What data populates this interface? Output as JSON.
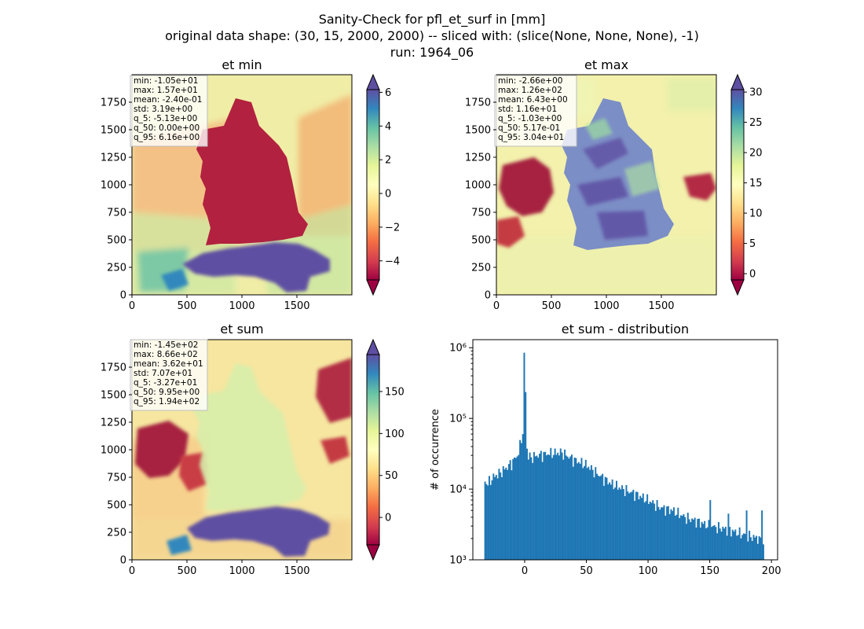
{
  "figure": {
    "title_lines": [
      "Sanity-Check for pfl_et_surf in [mm]",
      "original data shape: (30, 15, 2000, 2000) -- sliced with: (slice(None, None, None), -1)",
      "run: 1964_06"
    ]
  },
  "chart_data": [
    {
      "type": "heatmap",
      "title": "et min",
      "xlim": [
        0,
        2000
      ],
      "ylim": [
        0,
        2000
      ],
      "xticks": [
        0,
        500,
        1000,
        1500
      ],
      "yticks": [
        0,
        250,
        500,
        750,
        1000,
        1250,
        1500,
        1750
      ],
      "colorbar": {
        "cmap": "Spectral",
        "range": [
          -5.13,
          6.16
        ],
        "ticks": [
          -4,
          -2,
          0,
          2,
          4,
          6
        ],
        "extend": "both"
      },
      "stats": [
        "min: -1.05e+01",
        "max: 1.57e+01",
        "mean: -2.40e-01",
        "std: 3.19e+00",
        "q_5: -5.13e+00",
        "q_50: 0.00e+00",
        "q_95: 6.16e+00"
      ]
    },
    {
      "type": "heatmap",
      "title": "et max",
      "xlim": [
        0,
        2000
      ],
      "ylim": [
        0,
        2000
      ],
      "xticks": [
        0,
        500,
        1000,
        1500
      ],
      "yticks": [
        0,
        250,
        500,
        750,
        1000,
        1250,
        1500,
        1750
      ],
      "colorbar": {
        "cmap": "Spectral",
        "range": [
          -1.03,
          30.4
        ],
        "ticks": [
          0,
          5,
          10,
          15,
          20,
          25,
          30
        ],
        "extend": "both"
      },
      "stats": [
        "min: -2.66e+00",
        "max: 1.26e+02",
        "mean: 6.43e+00",
        "std: 1.16e+01",
        "q_5: -1.03e+00",
        "q_50: 5.17e-01",
        "q_95: 3.04e+01"
      ]
    },
    {
      "type": "heatmap",
      "title": "et sum",
      "xlim": [
        0,
        2000
      ],
      "ylim": [
        0,
        2000
      ],
      "xticks": [
        0,
        500,
        1000,
        1500
      ],
      "yticks": [
        0,
        250,
        500,
        750,
        1000,
        1250,
        1500,
        1750
      ],
      "colorbar": {
        "cmap": "Spectral",
        "range": [
          -32.7,
          194
        ],
        "ticks": [
          0,
          50,
          100,
          150
        ],
        "extend": "both"
      },
      "stats": [
        "min: -1.45e+02",
        "max: 8.66e+02",
        "mean: 3.62e+01",
        "std: 7.07e+01",
        "q_5: -3.27e+01",
        "q_50: 9.95e+00",
        "q_95: 1.94e+02"
      ]
    },
    {
      "type": "bar",
      "title": "et sum - distribution",
      "ylabel": "# of occurrence",
      "yscale": "log",
      "xlim": [
        -42,
        205
      ],
      "ylim": [
        1000,
        1300000
      ],
      "xticks": [
        0,
        50,
        100,
        150,
        200
      ],
      "yticks": [
        1000,
        10000,
        100000,
        1000000
      ],
      "ytick_labels": [
        "10³",
        "10⁴",
        "10⁵",
        "10⁶"
      ],
      "bar_color": "#1f77b4",
      "bins": {
        "start": -32.7,
        "end": 194,
        "count": 200
      },
      "anchors": {
        "x": [
          -32.7,
          -30,
          -25,
          -20,
          -15,
          -10,
          -5,
          -2,
          0,
          2,
          5,
          10,
          20,
          30,
          40,
          50,
          60,
          70,
          80,
          90,
          100,
          110,
          120,
          130,
          140,
          150,
          160,
          170,
          180,
          190,
          194
        ],
        "y": [
          13000,
          12000,
          15000,
          17000,
          20000,
          24000,
          32000,
          60000,
          850000,
          30000,
          28000,
          30000,
          32000,
          33000,
          26000,
          22000,
          16000,
          12000,
          10000,
          8500,
          7000,
          5500,
          5000,
          4000,
          3500,
          3000,
          2800,
          2500,
          2200,
          2000,
          1500
        ]
      },
      "spikes": [
        {
          "x": -0.5,
          "y": 850000
        },
        {
          "x": -2,
          "y": 60000
        },
        {
          "x": 150,
          "y": 7000
        },
        {
          "x": 165,
          "y": 4500
        },
        {
          "x": 180,
          "y": 5000
        },
        {
          "x": 192,
          "y": 5000
        }
      ]
    }
  ]
}
